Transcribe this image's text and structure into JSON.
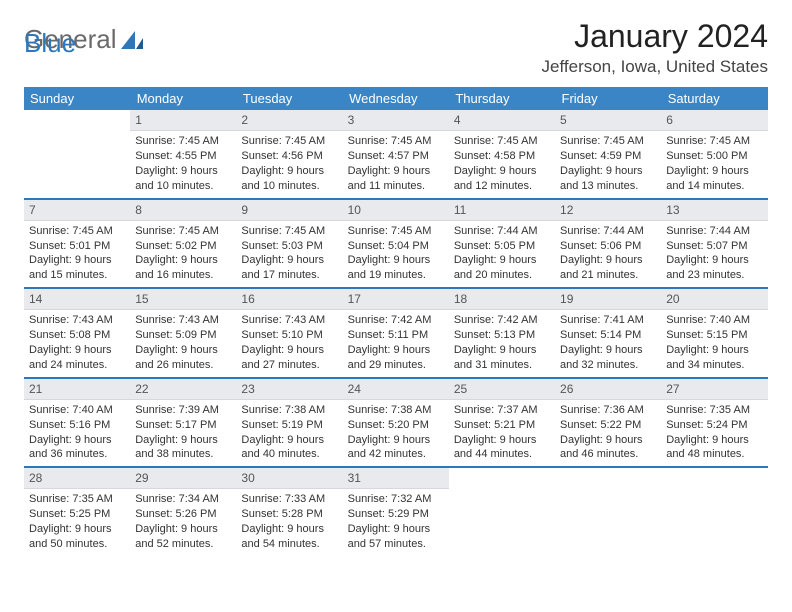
{
  "brand": {
    "word1": "General",
    "word2": "Blue",
    "text_color": "#6a6a6a",
    "accent_color": "#2f77bb"
  },
  "title": "January 2024",
  "location": "Jefferson, Iowa, United States",
  "header_bg": "#3a85c6",
  "header_fg": "#ffffff",
  "rule_color": "#2f77bb",
  "daynum_bg": "#e8eaed",
  "weekdays": [
    "Sunday",
    "Monday",
    "Tuesday",
    "Wednesday",
    "Thursday",
    "Friday",
    "Saturday"
  ],
  "first_weekday_index": 1,
  "days": [
    {
      "n": 1,
      "sunrise": "7:45 AM",
      "sunset": "4:55 PM",
      "daylight": "9 hours and 10 minutes."
    },
    {
      "n": 2,
      "sunrise": "7:45 AM",
      "sunset": "4:56 PM",
      "daylight": "9 hours and 10 minutes."
    },
    {
      "n": 3,
      "sunrise": "7:45 AM",
      "sunset": "4:57 PM",
      "daylight": "9 hours and 11 minutes."
    },
    {
      "n": 4,
      "sunrise": "7:45 AM",
      "sunset": "4:58 PM",
      "daylight": "9 hours and 12 minutes."
    },
    {
      "n": 5,
      "sunrise": "7:45 AM",
      "sunset": "4:59 PM",
      "daylight": "9 hours and 13 minutes."
    },
    {
      "n": 6,
      "sunrise": "7:45 AM",
      "sunset": "5:00 PM",
      "daylight": "9 hours and 14 minutes."
    },
    {
      "n": 7,
      "sunrise": "7:45 AM",
      "sunset": "5:01 PM",
      "daylight": "9 hours and 15 minutes."
    },
    {
      "n": 8,
      "sunrise": "7:45 AM",
      "sunset": "5:02 PM",
      "daylight": "9 hours and 16 minutes."
    },
    {
      "n": 9,
      "sunrise": "7:45 AM",
      "sunset": "5:03 PM",
      "daylight": "9 hours and 17 minutes."
    },
    {
      "n": 10,
      "sunrise": "7:45 AM",
      "sunset": "5:04 PM",
      "daylight": "9 hours and 19 minutes."
    },
    {
      "n": 11,
      "sunrise": "7:44 AM",
      "sunset": "5:05 PM",
      "daylight": "9 hours and 20 minutes."
    },
    {
      "n": 12,
      "sunrise": "7:44 AM",
      "sunset": "5:06 PM",
      "daylight": "9 hours and 21 minutes."
    },
    {
      "n": 13,
      "sunrise": "7:44 AM",
      "sunset": "5:07 PM",
      "daylight": "9 hours and 23 minutes."
    },
    {
      "n": 14,
      "sunrise": "7:43 AM",
      "sunset": "5:08 PM",
      "daylight": "9 hours and 24 minutes."
    },
    {
      "n": 15,
      "sunrise": "7:43 AM",
      "sunset": "5:09 PM",
      "daylight": "9 hours and 26 minutes."
    },
    {
      "n": 16,
      "sunrise": "7:43 AM",
      "sunset": "5:10 PM",
      "daylight": "9 hours and 27 minutes."
    },
    {
      "n": 17,
      "sunrise": "7:42 AM",
      "sunset": "5:11 PM",
      "daylight": "9 hours and 29 minutes."
    },
    {
      "n": 18,
      "sunrise": "7:42 AM",
      "sunset": "5:13 PM",
      "daylight": "9 hours and 31 minutes."
    },
    {
      "n": 19,
      "sunrise": "7:41 AM",
      "sunset": "5:14 PM",
      "daylight": "9 hours and 32 minutes."
    },
    {
      "n": 20,
      "sunrise": "7:40 AM",
      "sunset": "5:15 PM",
      "daylight": "9 hours and 34 minutes."
    },
    {
      "n": 21,
      "sunrise": "7:40 AM",
      "sunset": "5:16 PM",
      "daylight": "9 hours and 36 minutes."
    },
    {
      "n": 22,
      "sunrise": "7:39 AM",
      "sunset": "5:17 PM",
      "daylight": "9 hours and 38 minutes."
    },
    {
      "n": 23,
      "sunrise": "7:38 AM",
      "sunset": "5:19 PM",
      "daylight": "9 hours and 40 minutes."
    },
    {
      "n": 24,
      "sunrise": "7:38 AM",
      "sunset": "5:20 PM",
      "daylight": "9 hours and 42 minutes."
    },
    {
      "n": 25,
      "sunrise": "7:37 AM",
      "sunset": "5:21 PM",
      "daylight": "9 hours and 44 minutes."
    },
    {
      "n": 26,
      "sunrise": "7:36 AM",
      "sunset": "5:22 PM",
      "daylight": "9 hours and 46 minutes."
    },
    {
      "n": 27,
      "sunrise": "7:35 AM",
      "sunset": "5:24 PM",
      "daylight": "9 hours and 48 minutes."
    },
    {
      "n": 28,
      "sunrise": "7:35 AM",
      "sunset": "5:25 PM",
      "daylight": "9 hours and 50 minutes."
    },
    {
      "n": 29,
      "sunrise": "7:34 AM",
      "sunset": "5:26 PM",
      "daylight": "9 hours and 52 minutes."
    },
    {
      "n": 30,
      "sunrise": "7:33 AM",
      "sunset": "5:28 PM",
      "daylight": "9 hours and 54 minutes."
    },
    {
      "n": 31,
      "sunrise": "7:32 AM",
      "sunset": "5:29 PM",
      "daylight": "9 hours and 57 minutes."
    }
  ],
  "labels": {
    "sunrise": "Sunrise:",
    "sunset": "Sunset:",
    "daylight": "Daylight:"
  }
}
